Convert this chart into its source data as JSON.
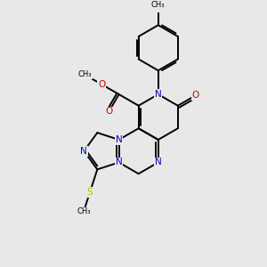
{
  "background_color": "#e8e8e8",
  "bond_color": "#000000",
  "n_color": "#0000cc",
  "o_color": "#cc0000",
  "s_color": "#bbbb00",
  "line_width": 1.4,
  "figsize": [
    3.0,
    3.0
  ],
  "dpi": 100,
  "xlim": [
    0,
    10
  ],
  "ylim": [
    0,
    10
  ],
  "label_fontsize": 7.5,
  "small_fontsize": 6.0
}
